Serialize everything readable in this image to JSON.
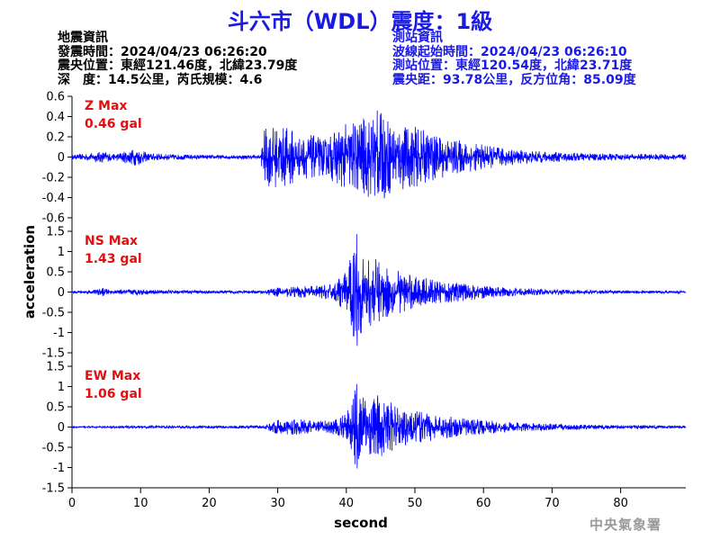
{
  "title": "斗六市（WDL）震度：1級",
  "quake_info": {
    "heading": "地震資訊",
    "origin_time": "發震時間：2024/04/23 06:26:20",
    "epicenter": "震央位置：東經121.46度，北緯23.79度",
    "depth_magnitude": "深　度：14.5公里，芮氏規模：4.6"
  },
  "station_info": {
    "heading": "測站資訊",
    "onset_time": "波線起始時間：2024/04/23 06:26:10",
    "location": "測站位置：東經120.54度，北緯23.71度",
    "distance_azimuth": "震央距：93.78公里，反方位角：85.09度"
  },
  "credit": "中央氣象署",
  "colors": {
    "trace": "#0000ff",
    "max_label": "#e01010",
    "title": "#1a1ae6"
  },
  "chart_data": [
    {
      "type": "line",
      "component": "Z",
      "max_label": "Z Max",
      "max_value_label": "0.46 gal",
      "max_value": 0.46,
      "ylim": [
        -0.6,
        0.6
      ],
      "yticks": [
        -0.6,
        -0.4,
        -0.2,
        0,
        0.2,
        0.4,
        0.6
      ],
      "ytick_labels": [
        "-0.6",
        "-0.4",
        "-0.2",
        "0",
        "0.2",
        "0.4",
        "0.6"
      ],
      "envelope": [
        [
          0,
          0.02
        ],
        [
          3,
          0.04
        ],
        [
          4.5,
          0.06
        ],
        [
          6,
          0.03
        ],
        [
          9.5,
          0.09
        ],
        [
          11,
          0.04
        ],
        [
          14,
          0.03
        ],
        [
          20,
          0.02
        ],
        [
          27.5,
          0.02
        ],
        [
          28,
          0.28
        ],
        [
          29,
          0.3
        ],
        [
          32,
          0.3
        ],
        [
          33,
          0.2
        ],
        [
          35,
          0.22
        ],
        [
          37,
          0.18
        ],
        [
          39,
          0.3
        ],
        [
          41,
          0.36
        ],
        [
          43,
          0.4
        ],
        [
          44.5,
          0.46
        ],
        [
          47,
          0.35
        ],
        [
          50,
          0.3
        ],
        [
          53,
          0.22
        ],
        [
          57,
          0.16
        ],
        [
          61,
          0.11
        ],
        [
          65,
          0.07
        ],
        [
          70,
          0.05
        ],
        [
          75,
          0.04
        ],
        [
          80,
          0.03
        ],
        [
          89.5,
          0.03
        ]
      ]
    },
    {
      "type": "line",
      "component": "NS",
      "max_label": "NS Max",
      "max_value_label": "1.43 gal",
      "max_value": 1.43,
      "ylim": [
        -1.5,
        1.5
      ],
      "yticks": [
        -1.5,
        -1,
        -0.5,
        0,
        0.5,
        1,
        1.5
      ],
      "ytick_labels": [
        "-1.5",
        "-1",
        "-0.5",
        "0",
        "0.5",
        "1",
        "1.5"
      ],
      "envelope": [
        [
          0,
          0.03
        ],
        [
          3,
          0.05
        ],
        [
          4.5,
          0.1
        ],
        [
          6,
          0.04
        ],
        [
          9.5,
          0.08
        ],
        [
          12,
          0.05
        ],
        [
          20,
          0.04
        ],
        [
          28,
          0.04
        ],
        [
          30,
          0.12
        ],
        [
          35,
          0.15
        ],
        [
          38,
          0.2
        ],
        [
          40,
          0.5
        ],
        [
          41.5,
          1.43
        ],
        [
          42.5,
          0.8
        ],
        [
          44,
          0.85
        ],
        [
          46,
          0.65
        ],
        [
          49,
          0.45
        ],
        [
          53,
          0.3
        ],
        [
          58,
          0.2
        ],
        [
          62,
          0.13
        ],
        [
          66,
          0.09
        ],
        [
          72,
          0.06
        ],
        [
          80,
          0.04
        ],
        [
          89.5,
          0.03
        ]
      ]
    },
    {
      "type": "line",
      "component": "EW",
      "max_label": "EW Max",
      "max_value_label": "1.06 gal",
      "max_value": 1.06,
      "ylim": [
        -1.5,
        1.5
      ],
      "yticks": [
        -1.5,
        -1,
        -0.5,
        0,
        0.5,
        1,
        1.5
      ],
      "ytick_labels": [
        "-1.5",
        "-1",
        "-0.5",
        "0",
        "0.5",
        "1",
        "1.5"
      ],
      "envelope": [
        [
          0,
          0.02
        ],
        [
          10,
          0.03
        ],
        [
          20,
          0.03
        ],
        [
          28,
          0.04
        ],
        [
          30,
          0.18
        ],
        [
          33,
          0.2
        ],
        [
          36,
          0.15
        ],
        [
          38.5,
          0.2
        ],
        [
          40,
          0.35
        ],
        [
          41.5,
          1.06
        ],
        [
          43,
          0.75
        ],
        [
          45,
          0.8
        ],
        [
          47,
          0.55
        ],
        [
          50,
          0.4
        ],
        [
          54,
          0.3
        ],
        [
          58,
          0.2
        ],
        [
          62,
          0.15
        ],
        [
          66,
          0.1
        ],
        [
          70,
          0.08
        ],
        [
          75,
          0.06
        ],
        [
          82,
          0.04
        ],
        [
          89.5,
          0.03
        ]
      ]
    }
  ],
  "x_axis": {
    "label": "second",
    "xlim": [
      0,
      89.5
    ],
    "ticks": [
      0,
      10,
      20,
      30,
      40,
      50,
      60,
      70,
      80
    ],
    "tick_labels": [
      "0",
      "10",
      "20",
      "30",
      "40",
      "50",
      "60",
      "70",
      "80"
    ]
  },
  "y_axis_label": "acceleration"
}
